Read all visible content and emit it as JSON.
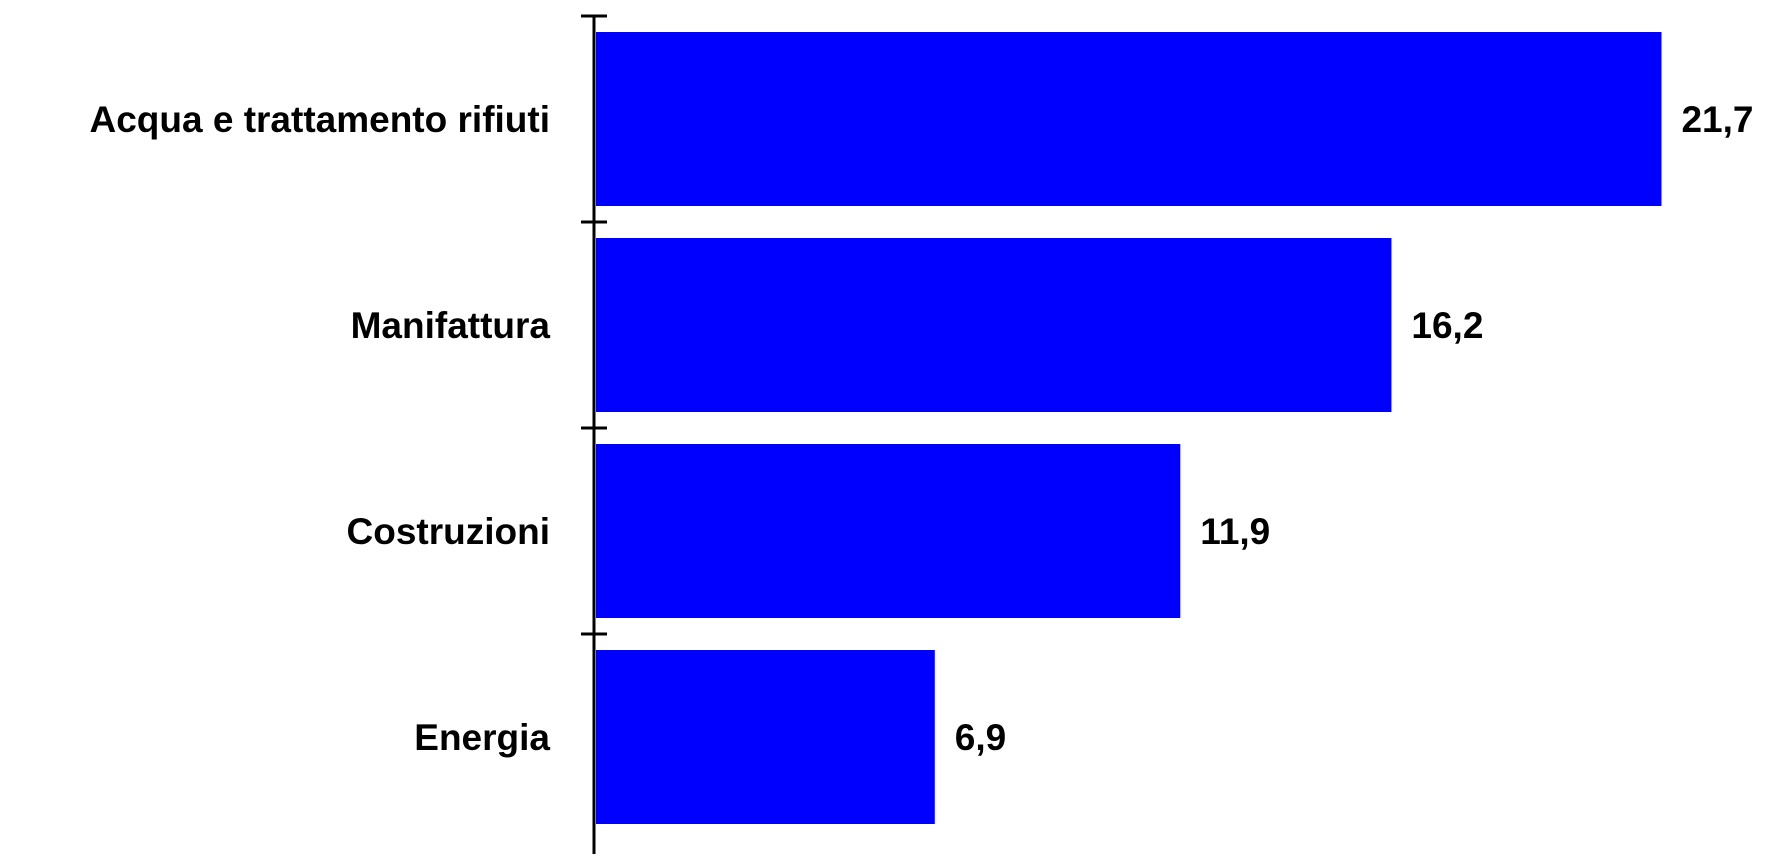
{
  "chart_data": {
    "type": "bar",
    "orientation": "horizontal",
    "categories": [
      "Acqua e trattamento rifiuti",
      "Manifattura",
      "Costruzioni",
      "Energia"
    ],
    "values": [
      21.7,
      16.2,
      11.9,
      6.9
    ],
    "data_labels": [
      "21,7",
      "16,2",
      "11,9",
      "6,9"
    ],
    "title": "",
    "xlabel": "",
    "ylabel": "",
    "xlim": [
      0,
      24.3
    ],
    "grid": false,
    "legend": "none",
    "bar_color": "#0000FF",
    "axis_color": "#000000",
    "text_color": "#000000"
  }
}
